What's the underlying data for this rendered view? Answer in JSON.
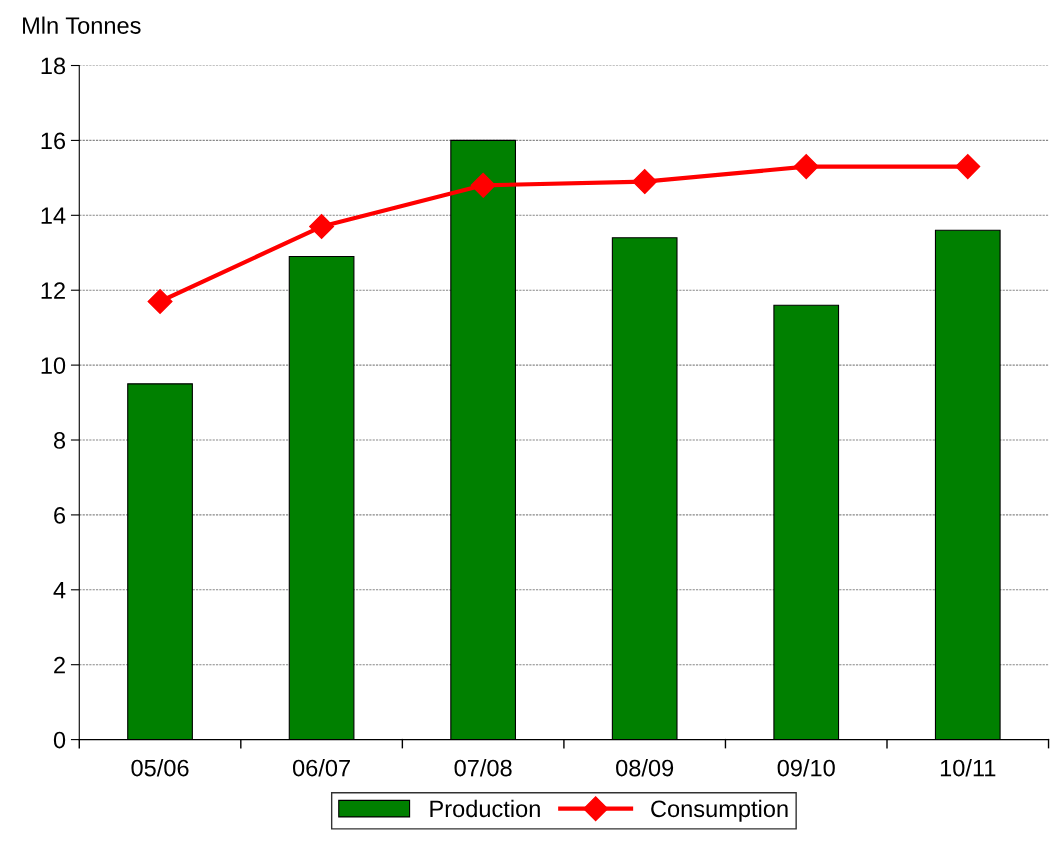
{
  "chart_data": {
    "type": "bar",
    "ylabel": "Mln Tonnes",
    "categories": [
      "05/06",
      "06/07",
      "07/08",
      "08/09",
      "09/10",
      "10/11"
    ],
    "series": [
      {
        "name": "Production",
        "color": "#008000",
        "values": [
          9.5,
          12.9,
          16.0,
          13.4,
          11.6,
          13.6
        ]
      },
      {
        "name": "Consumption",
        "type": "line",
        "color": "#ff0000",
        "marker": "diamond",
        "values": [
          11.7,
          13.7,
          14.8,
          14.9,
          15.3,
          15.3
        ]
      }
    ],
    "ylim": [
      0,
      18
    ],
    "yticks": [
      0,
      2,
      4,
      6,
      8,
      10,
      12,
      14,
      16,
      18
    ],
    "grid": "y",
    "legend": "bottom"
  }
}
